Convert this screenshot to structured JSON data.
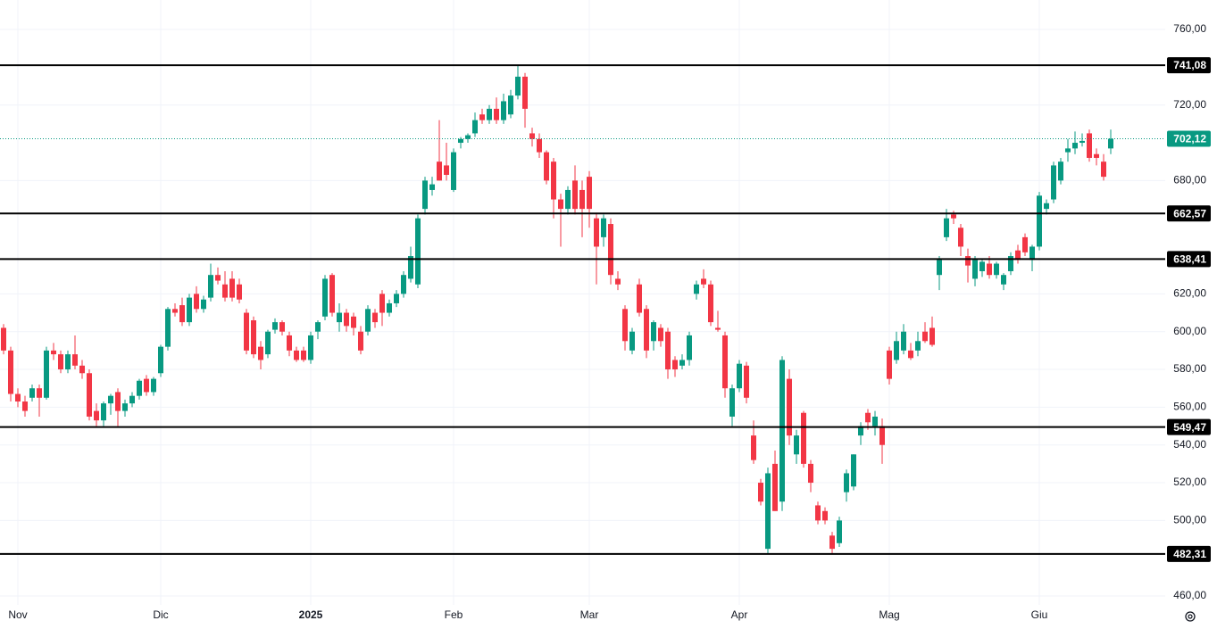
{
  "chart_data": {
    "type": "candlestick",
    "up_color": "#089981",
    "down_color": "#f23645",
    "level_color": "#000000",
    "last_color": "#089981",
    "ylim": [
      455.3,
      775.6
    ],
    "yticks": [
      {
        "value": 460,
        "label": "460,00"
      },
      {
        "value": 500,
        "label": "500,00"
      },
      {
        "value": 520,
        "label": "520,00"
      },
      {
        "value": 540,
        "label": "540,00"
      },
      {
        "value": 560,
        "label": "560,00"
      },
      {
        "value": 580,
        "label": "580,00"
      },
      {
        "value": 600,
        "label": "600,00"
      },
      {
        "value": 620,
        "label": "620,00"
      },
      {
        "value": 680,
        "label": "680,00"
      },
      {
        "value": 720,
        "label": "720,00"
      },
      {
        "value": 760,
        "label": "760,00"
      }
    ],
    "grid": true,
    "levels": [
      741.08,
      662.57,
      638.41,
      549.47,
      482.31
    ],
    "level_labels": [
      "741,08",
      "662,57",
      "638,41",
      "549,47",
      "482,31"
    ],
    "last_price": 702.12,
    "last_price_label": "702,12",
    "categories": [
      null,
      null,
      "Nov",
      null,
      null,
      null,
      null,
      null,
      null,
      null,
      null,
      null,
      null,
      null,
      null,
      null,
      null,
      null,
      null,
      null,
      null,
      null,
      "Dic",
      null,
      null,
      null,
      null,
      null,
      null,
      null,
      null,
      null,
      null,
      null,
      null,
      null,
      null,
      null,
      null,
      null,
      null,
      null,
      null,
      "2025",
      null,
      null,
      null,
      null,
      null,
      null,
      null,
      null,
      null,
      null,
      null,
      null,
      null,
      null,
      null,
      null,
      null,
      null,
      null,
      "Feb",
      null,
      null,
      null,
      null,
      null,
      null,
      null,
      null,
      null,
      null,
      null,
      null,
      null,
      null,
      null,
      null,
      null,
      null,
      "Mar",
      null,
      null,
      null,
      null,
      null,
      null,
      null,
      null,
      null,
      null,
      null,
      null,
      null,
      null,
      null,
      null,
      null,
      null,
      null,
      null,
      "Apr",
      null,
      null,
      null,
      null,
      null,
      null,
      null,
      null,
      null,
      null,
      null,
      null,
      null,
      null,
      null,
      null,
      null,
      null,
      null,
      null,
      "Mag",
      null,
      null,
      null,
      null,
      null,
      null,
      null,
      null,
      null,
      null,
      null,
      null,
      null,
      null,
      null,
      null,
      null,
      null,
      null,
      null,
      "Giu",
      null,
      null,
      null,
      null,
      null,
      null,
      null,
      null,
      null,
      null
    ],
    "ohlc": [
      [
        602,
        604,
        588,
        590
      ],
      [
        590,
        592,
        563,
        567
      ],
      [
        567,
        570,
        560,
        563
      ],
      [
        563,
        566,
        555,
        558
      ],
      [
        565,
        572,
        563,
        570
      ],
      [
        570,
        572,
        555,
        565
      ],
      [
        565,
        592,
        564,
        590
      ],
      [
        590,
        594,
        585,
        588
      ],
      [
        588,
        590,
        578,
        580
      ],
      [
        580,
        590,
        578,
        588
      ],
      [
        588,
        598,
        580,
        582
      ],
      [
        582,
        585,
        575,
        578
      ],
      [
        578,
        580,
        553,
        555
      ],
      [
        558,
        562,
        550,
        553
      ],
      [
        553,
        563,
        550,
        562
      ],
      [
        562,
        567,
        556,
        566
      ],
      [
        568,
        570,
        550,
        558
      ],
      [
        558,
        564,
        555,
        562
      ],
      [
        562,
        568,
        560,
        566
      ],
      [
        566,
        575,
        564,
        574
      ],
      [
        575,
        577,
        566,
        568
      ],
      [
        568,
        576,
        566,
        575
      ],
      [
        578,
        593,
        576,
        592
      ],
      [
        592,
        613,
        590,
        612
      ],
      [
        612,
        615,
        608,
        610
      ],
      [
        614,
        618,
        603,
        605
      ],
      [
        605,
        620,
        603,
        618
      ],
      [
        620,
        624,
        610,
        612
      ],
      [
        612,
        619,
        610,
        617
      ],
      [
        618,
        636,
        616,
        630
      ],
      [
        630,
        634,
        625,
        627
      ],
      [
        625,
        632,
        616,
        618
      ],
      [
        628,
        632,
        616,
        618
      ],
      [
        625,
        628,
        615,
        617
      ],
      [
        610,
        612,
        588,
        590
      ],
      [
        606,
        608,
        586,
        588
      ],
      [
        592,
        595,
        580,
        585
      ],
      [
        588,
        601,
        586,
        600
      ],
      [
        601,
        607,
        599,
        605
      ],
      [
        605,
        606,
        598,
        600
      ],
      [
        598,
        600,
        587,
        590
      ],
      [
        590,
        592,
        584,
        585
      ],
      [
        590,
        592,
        584,
        585
      ],
      [
        585,
        600,
        583,
        598
      ],
      [
        600,
        606,
        596,
        605
      ],
      [
        608,
        630,
        606,
        628
      ],
      [
        630,
        631,
        608,
        610
      ],
      [
        605,
        615,
        600,
        610
      ],
      [
        610,
        612,
        600,
        603
      ],
      [
        608,
        610,
        598,
        602
      ],
      [
        600,
        603,
        588,
        590
      ],
      [
        600,
        614,
        598,
        612
      ],
      [
        610,
        612,
        602,
        605
      ],
      [
        620,
        622,
        603,
        610
      ],
      [
        610,
        617,
        608,
        615
      ],
      [
        615,
        622,
        613,
        620
      ],
      [
        620,
        632,
        618,
        630
      ],
      [
        628,
        645,
        626,
        640
      ],
      [
        625,
        662,
        623,
        660
      ],
      [
        665,
        682,
        662,
        680
      ],
      [
        675,
        682,
        672,
        678
      ],
      [
        690,
        712,
        680,
        680
      ],
      [
        688,
        700,
        680,
        683
      ],
      [
        675,
        697,
        674,
        695
      ],
      [
        700,
        703,
        697,
        702
      ],
      [
        702,
        705,
        700,
        704
      ],
      [
        705,
        716,
        703,
        712
      ],
      [
        715,
        718,
        710,
        712
      ],
      [
        712,
        720,
        710,
        718
      ],
      [
        718,
        724,
        710,
        712
      ],
      [
        712,
        726,
        710,
        722
      ],
      [
        715,
        728,
        713,
        725
      ],
      [
        725,
        741,
        723,
        735
      ],
      [
        735,
        737,
        708,
        718
      ],
      [
        705,
        708,
        698,
        702
      ],
      [
        702,
        705,
        692,
        695
      ],
      [
        695,
        696,
        678,
        680
      ],
      [
        690,
        692,
        660,
        670
      ],
      [
        670,
        673,
        645,
        665
      ],
      [
        665,
        677,
        662,
        675
      ],
      [
        680,
        688,
        662,
        665
      ],
      [
        675,
        680,
        650,
        665
      ],
      [
        682,
        685,
        655,
        665
      ],
      [
        660,
        663,
        625,
        645
      ],
      [
        650,
        662,
        645,
        660
      ],
      [
        657,
        660,
        625,
        630
      ],
      [
        628,
        632,
        622,
        625
      ],
      [
        612,
        614,
        590,
        595
      ],
      [
        590,
        602,
        588,
        600
      ],
      [
        625,
        628,
        608,
        610
      ],
      [
        612,
        614,
        586,
        590
      ],
      [
        595,
        606,
        590,
        605
      ],
      [
        602,
        604,
        592,
        595
      ],
      [
        600,
        602,
        575,
        580
      ],
      [
        585,
        587,
        576,
        580
      ],
      [
        582,
        588,
        580,
        585
      ],
      [
        585,
        600,
        582,
        598
      ],
      [
        620,
        627,
        617,
        625
      ],
      [
        628,
        633,
        623,
        625
      ],
      [
        625,
        627,
        603,
        605
      ],
      [
        602,
        611,
        600,
        601
      ],
      [
        598,
        600,
        565,
        570
      ],
      [
        555,
        572,
        550,
        570
      ],
      [
        570,
        585,
        568,
        583
      ],
      [
        582,
        584,
        562,
        565
      ],
      [
        545,
        553,
        530,
        532
      ],
      [
        520,
        522,
        508,
        510
      ],
      [
        485,
        528,
        482,
        525
      ],
      [
        530,
        537,
        505,
        505
      ],
      [
        510,
        587,
        505,
        585
      ],
      [
        575,
        580,
        540,
        545
      ],
      [
        535,
        548,
        530,
        545
      ],
      [
        557,
        558,
        528,
        530
      ],
      [
        530,
        532,
        515,
        520
      ],
      [
        508,
        510,
        498,
        500
      ],
      [
        505,
        507,
        498,
        500
      ],
      [
        492,
        494,
        482,
        485
      ],
      [
        488,
        502,
        486,
        500
      ],
      [
        515,
        527,
        510,
        525
      ],
      [
        518,
        535,
        516,
        535
      ],
      [
        545,
        552,
        540,
        550
      ],
      [
        557,
        559,
        548,
        552
      ],
      [
        550,
        558,
        545,
        555
      ],
      [
        550,
        554,
        530,
        540
      ],
      [
        590,
        592,
        572,
        575
      ],
      [
        585,
        600,
        583,
        595
      ],
      [
        590,
        604,
        588,
        600
      ],
      [
        590,
        594,
        585,
        586
      ],
      [
        590,
        600,
        587,
        595
      ],
      [
        600,
        605,
        594,
        595
      ],
      [
        602,
        608,
        592,
        593
      ],
      [
        630,
        640,
        622,
        638
      ],
      [
        650,
        665,
        648,
        660
      ],
      [
        662,
        664,
        657,
        660
      ],
      [
        655,
        657,
        640,
        645
      ],
      [
        640,
        644,
        626,
        635
      ],
      [
        628,
        640,
        624,
        638
      ],
      [
        632,
        638,
        629,
        637
      ],
      [
        636,
        640,
        628,
        630
      ],
      [
        630,
        637,
        628,
        636
      ],
      [
        625,
        631,
        622,
        630
      ],
      [
        632,
        642,
        630,
        640
      ],
      [
        643,
        646,
        636,
        638
      ],
      [
        650,
        652,
        640,
        642
      ],
      [
        638,
        646,
        632,
        645
      ],
      [
        645,
        674,
        643,
        672
      ],
      [
        665,
        670,
        662,
        668
      ],
      [
        670,
        690,
        668,
        688
      ],
      [
        680,
        692,
        678,
        690
      ],
      [
        695,
        702,
        690,
        697
      ],
      [
        697,
        706,
        694,
        700
      ],
      [
        700,
        705,
        698,
        701
      ],
      [
        705,
        707,
        690,
        692
      ],
      [
        694,
        697,
        688,
        692
      ],
      [
        690,
        694,
        680,
        682
      ],
      [
        697,
        707,
        694,
        702.12
      ]
    ]
  }
}
